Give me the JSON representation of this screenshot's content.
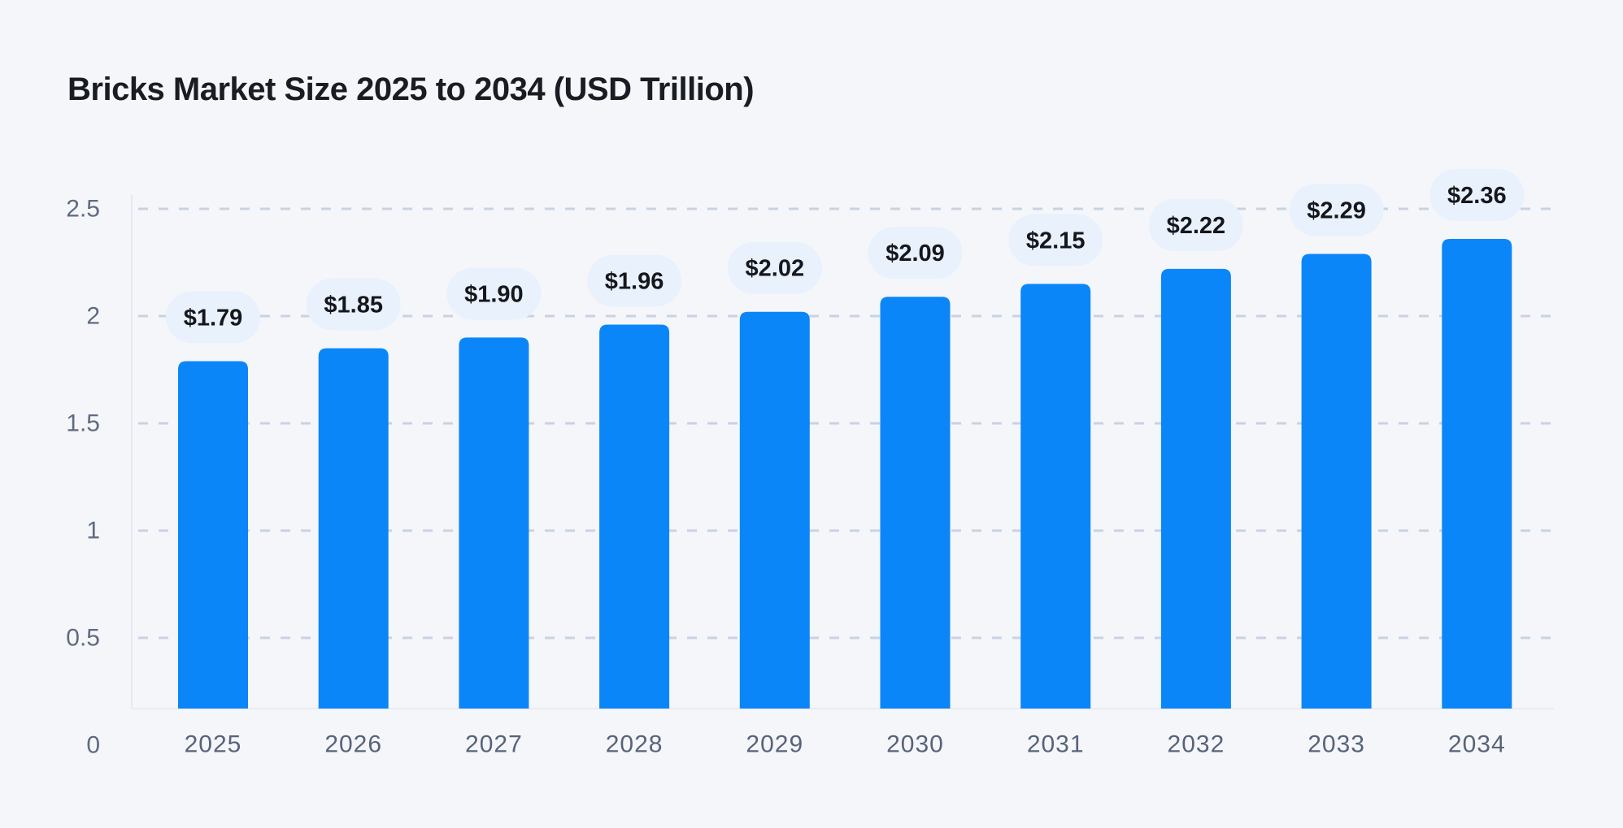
{
  "title": "Bricks Market Size 2025 to 2034 (USD Trillion)",
  "chart_data": {
    "type": "bar",
    "title": "Bricks Market Size 2025 to 2034 (USD Trillion)",
    "categories": [
      "2025",
      "2026",
      "2027",
      "2028",
      "2029",
      "2030",
      "2031",
      "2032",
      "2033",
      "2034"
    ],
    "values": [
      1.79,
      1.85,
      1.9,
      1.96,
      2.02,
      2.09,
      2.15,
      2.22,
      2.29,
      2.36
    ],
    "value_labels": [
      "$1.79",
      "$1.85",
      "$1.90",
      "$1.96",
      "$2.02",
      "$2.09",
      "$2.15",
      "$2.22",
      "$2.29",
      "$2.36"
    ],
    "xlabel": "",
    "ylabel": "",
    "y_ticks": [
      "0",
      "0.5",
      "1",
      "1.5",
      "2",
      "2.5"
    ],
    "y_tick_values": [
      0,
      0.5,
      1,
      1.5,
      2,
      2.5
    ],
    "ylim": [
      0,
      2.5
    ],
    "grid": "horizontal-dashed",
    "legend_position": "none",
    "colors": {
      "background": "#f5f6fa",
      "bar": "#0b86f8",
      "bubble_fill": "#e9f1fc",
      "bubble_text": "#15171c",
      "gridline": "#c9d2e2",
      "axis_line": "#e4e7ee",
      "baseline": "#e9ebf1",
      "y_tick_text": "#5f6b80",
      "x_tick_text": "#57637a",
      "title_text": "#1a1c23"
    }
  }
}
